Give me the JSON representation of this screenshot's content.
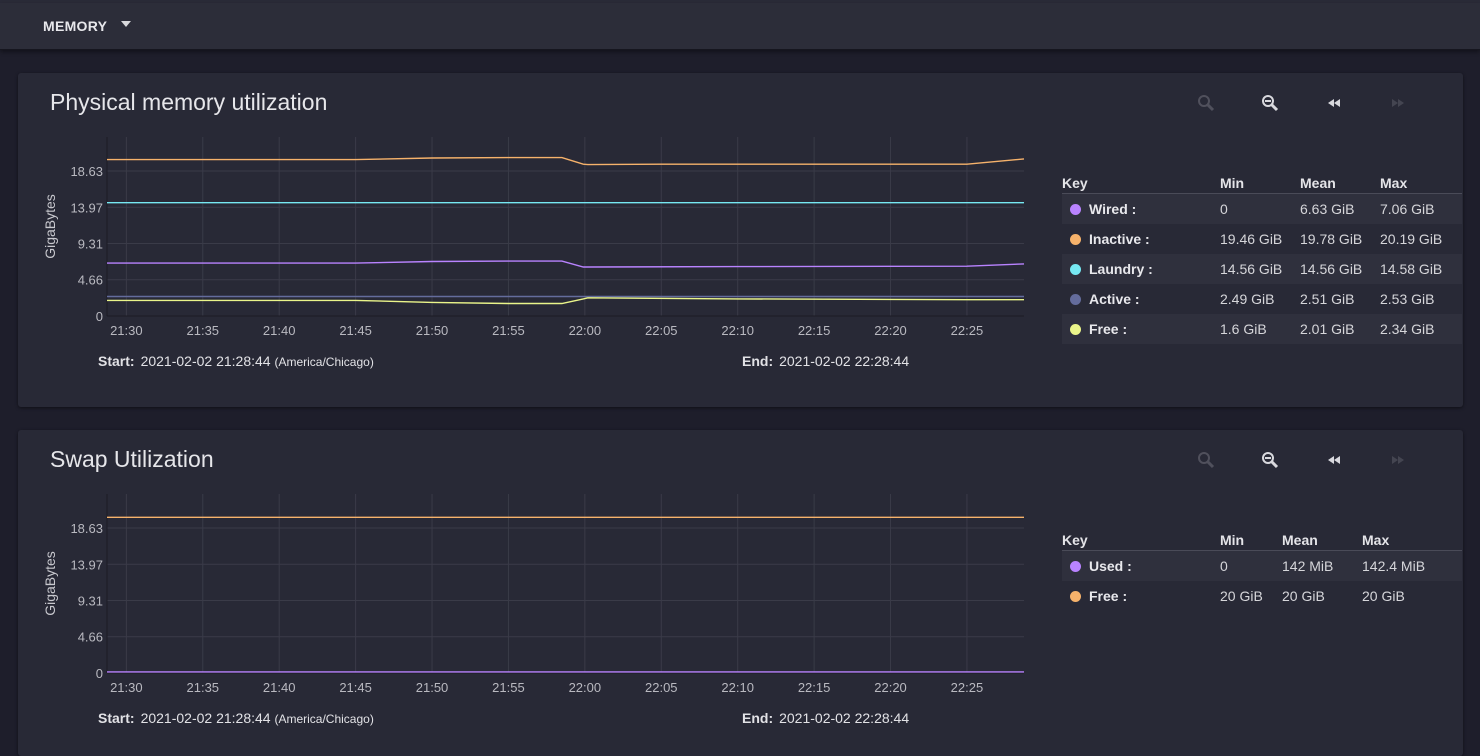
{
  "toolbar": {
    "menu_label": "MEMORY"
  },
  "panels": [
    {
      "title": "Physical memory utilization",
      "y_axis_label": "GigaBytes",
      "range": {
        "start_label": "Start:",
        "start_value": "2021-02-02 21:28:44",
        "timezone": "(America/Chicago)",
        "end_label": "End:",
        "end_value": "2021-02-02 22:28:44"
      },
      "legend": {
        "headers": {
          "key": "Key",
          "min": "Min",
          "mean": "Mean",
          "max": "Max"
        },
        "rows": [
          {
            "name": "Wired :",
            "color": "#b983ff",
            "min": "0",
            "mean": "6.63 GiB",
            "max": "7.06 GiB"
          },
          {
            "name": "Inactive :",
            "color": "#f6b26b",
            "min": "19.46 GiB",
            "mean": "19.78 GiB",
            "max": "20.19 GiB"
          },
          {
            "name": "Laundry :",
            "color": "#76e8f2",
            "min": "14.56 GiB",
            "mean": "14.56 GiB",
            "max": "14.58 GiB"
          },
          {
            "name": "Active :",
            "color": "#646c9c",
            "min": "2.49 GiB",
            "mean": "2.51 GiB",
            "max": "2.53 GiB"
          },
          {
            "name": "Free :",
            "color": "#eaf58a",
            "min": "1.6 GiB",
            "mean": "2.01 GiB",
            "max": "2.34 GiB"
          }
        ]
      }
    },
    {
      "title": "Swap Utilization",
      "y_axis_label": "GigaBytes",
      "range": {
        "start_label": "Start:",
        "start_value": "2021-02-02 21:28:44",
        "timezone": "(America/Chicago)",
        "end_label": "End:",
        "end_value": "2021-02-02 22:28:44"
      },
      "legend": {
        "headers": {
          "key": "Key",
          "min": "Min",
          "mean": "Mean",
          "max": "Max"
        },
        "rows": [
          {
            "name": "Used :",
            "color": "#b983ff",
            "min": "0",
            "mean": "142 MiB",
            "max": "142.4 MiB"
          },
          {
            "name": "Free :",
            "color": "#f6b26b",
            "min": "20 GiB",
            "mean": "20 GiB",
            "max": "20 GiB"
          }
        ]
      }
    }
  ],
  "chart_data": [
    {
      "type": "line",
      "title": "Physical memory utilization",
      "ylabel": "GigaBytes",
      "xlabel": "",
      "ylim": [
        0,
        23
      ],
      "y_ticks": [
        "0",
        "4.66",
        "9.31",
        "13.97",
        "18.63"
      ],
      "y_tick_values": [
        0,
        4.66,
        9.31,
        13.97,
        18.63
      ],
      "x_range_min": [
        28.733,
        88.733
      ],
      "x_ticks": [
        "21:30",
        "21:35",
        "21:40",
        "21:45",
        "21:50",
        "21:55",
        "22:00",
        "22:05",
        "22:10",
        "22:15",
        "22:20",
        "22:25"
      ],
      "x_tick_values": [
        30,
        35,
        40,
        45,
        50,
        55,
        60,
        65,
        70,
        75,
        80,
        85
      ],
      "series": [
        {
          "name": "Inactive",
          "color": "#f6b26b",
          "x": [
            28.733,
            45,
            50,
            55,
            58.5,
            59.9,
            60.2,
            65,
            75,
            85,
            88.733
          ],
          "values": [
            20.1,
            20.1,
            20.3,
            20.35,
            20.35,
            19.5,
            19.46,
            19.5,
            19.5,
            19.5,
            20.19
          ]
        },
        {
          "name": "Laundry",
          "color": "#76e8f2",
          "x": [
            28.733,
            88.733
          ],
          "values": [
            14.56,
            14.56
          ]
        },
        {
          "name": "Wired",
          "color": "#b983ff",
          "x": [
            28.733,
            45,
            50,
            55,
            58.5,
            59.9,
            60.2,
            70,
            85,
            88.733
          ],
          "values": [
            6.8,
            6.8,
            7.0,
            7.06,
            7.06,
            6.3,
            6.3,
            6.35,
            6.4,
            6.7
          ]
        },
        {
          "name": "Active",
          "color": "#646c9c",
          "x": [
            28.733,
            88.733
          ],
          "values": [
            2.51,
            2.51
          ]
        },
        {
          "name": "Free",
          "color": "#eaf58a",
          "x": [
            28.733,
            45,
            50,
            55,
            58.5,
            59.9,
            60.2,
            70,
            85,
            88.733
          ],
          "values": [
            2.0,
            2.0,
            1.75,
            1.6,
            1.6,
            2.2,
            2.34,
            2.2,
            2.1,
            2.1
          ]
        }
      ]
    },
    {
      "type": "line",
      "title": "Swap Utilization",
      "ylabel": "GigaBytes",
      "xlabel": "",
      "ylim": [
        0,
        23
      ],
      "y_ticks": [
        "0",
        "4.66",
        "9.31",
        "13.97",
        "18.63"
      ],
      "y_tick_values": [
        0,
        4.66,
        9.31,
        13.97,
        18.63
      ],
      "x_range_min": [
        28.733,
        88.733
      ],
      "x_ticks": [
        "21:30",
        "21:35",
        "21:40",
        "21:45",
        "21:50",
        "21:55",
        "22:00",
        "22:05",
        "22:10",
        "22:15",
        "22:20",
        "22:25"
      ],
      "x_tick_values": [
        30,
        35,
        40,
        45,
        50,
        55,
        60,
        65,
        70,
        75,
        80,
        85
      ],
      "series": [
        {
          "name": "Free",
          "color": "#f6b26b",
          "x": [
            28.733,
            88.733
          ],
          "values": [
            20,
            20
          ]
        },
        {
          "name": "Used",
          "color": "#b983ff",
          "x": [
            28.733,
            88.733
          ],
          "values": [
            0.139,
            0.139
          ]
        }
      ]
    }
  ]
}
